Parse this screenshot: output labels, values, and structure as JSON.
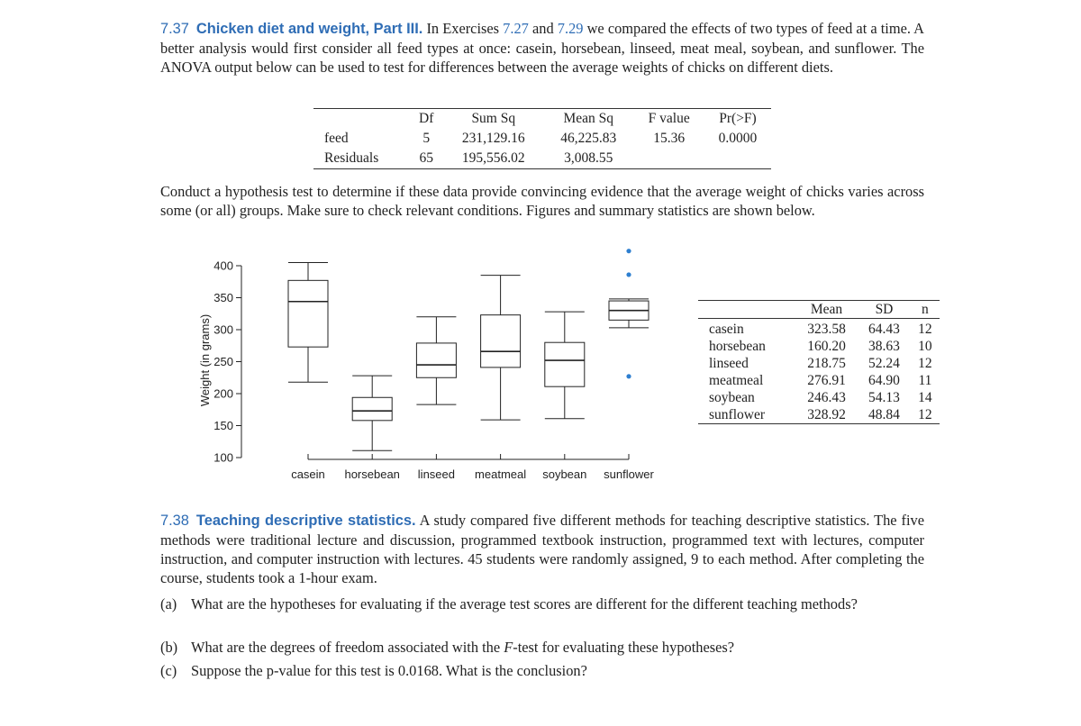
{
  "problem_1": {
    "number": "7.37",
    "title": "Chicken diet and weight, Part III.",
    "intro": "In Exercises",
    "ref_1": "7.27",
    "conj": "and",
    "ref_2": "7.29",
    "body": "we compared the effects of two types of feed at a time. A better analysis would first consider all feed types at once: casein, horsebean, linseed, meat meal, soybean, and sunflower. The ANOVA output below can be used to test for differences between the average weights of chicks on different diets."
  },
  "anova_table": {
    "header": [
      "Df",
      "Sum Sq",
      "Mean Sq",
      "F value",
      "Pr(>F)"
    ],
    "rows": [
      [
        "feed",
        "5",
        "231,129.16",
        "46,225.83",
        "15.36",
        "0.0000"
      ],
      [
        "Residuals",
        "65",
        "195,556.02",
        "3,008.55"
      ]
    ]
  },
  "question_text": "Conduct a hypothesis test to determine if these data provide convincing evidence that the average weight of chicks varies across some (or all) groups. Make sure to check relevant conditions. Figures and summary statistics are shown below.",
  "chart_data": {
    "type": "boxplot",
    "ylabel": "Weight (in grams)",
    "categories": [
      "casein",
      "horsebean",
      "linseed",
      "meatmeal",
      "soybean",
      "sunflower"
    ],
    "min": [
      218,
      111,
      183,
      159,
      161,
      303
    ],
    "q1": [
      273,
      158,
      225,
      241,
      211,
      315
    ],
    "median": [
      344,
      173,
      245,
      266,
      252,
      330
    ],
    "q3": [
      377,
      194,
      279,
      323,
      280,
      345
    ],
    "max": [
      405,
      228,
      320,
      385,
      328,
      348
    ],
    "outliers": [
      [],
      [],
      [],
      [],
      [],
      [
        423,
        386,
        227
      ]
    ],
    "box_color": "#222222",
    "outlier_color": "#2e7fd0",
    "ylim": [
      100,
      400
    ],
    "yticks": [
      100,
      150,
      200,
      250,
      300,
      350,
      400
    ]
  },
  "summary_table": {
    "header": [
      "Mean",
      "SD",
      "n"
    ],
    "rows": [
      [
        "casein",
        "323.58",
        "64.43",
        "12"
      ],
      [
        "horsebean",
        "160.20",
        "38.63",
        "10"
      ],
      [
        "linseed",
        "218.75",
        "52.24",
        "12"
      ],
      [
        "meatmeal",
        "276.91",
        "64.90",
        "11"
      ],
      [
        "soybean",
        "246.43",
        "54.13",
        "14"
      ],
      [
        "sunflower",
        "328.92",
        "48.84",
        "12"
      ]
    ]
  },
  "problem_2": {
    "number": "7.38",
    "title": "Teaching descriptive statistics.",
    "body": "A study compared five different methods for teaching descriptive statistics. The five methods were traditional lecture and discussion, programmed textbook instruction, programmed text with lectures, computer instruction, and computer instruction with lectures. 45 students were randomly assigned, 9 to each method. After completing the course, students took a 1-hour exam.",
    "items": [
      {
        "label": "(a)",
        "text": "What are the hypotheses for evaluating if the average test scores are different for the different teaching methods?"
      },
      {
        "label": "(b)",
        "text_before": "What are the degrees of freedom associated with the",
        "italic": "F",
        "text_after": "-test for evaluating these hypotheses?"
      },
      {
        "label": "(c)",
        "text": "Suppose the p-value for this test is 0.0168. What is the conclusion?"
      }
    ]
  }
}
